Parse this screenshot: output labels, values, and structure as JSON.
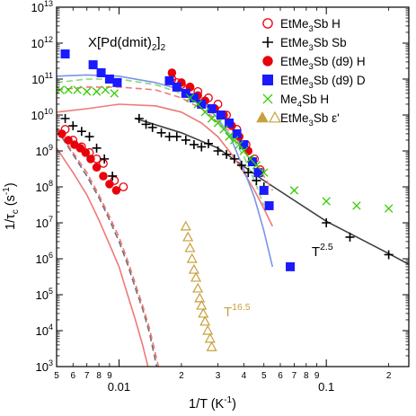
{
  "chart_data": {
    "type": "scatter",
    "title": "X[Pd(dmit)2]2",
    "xlabel": "1/T (K-1)",
    "ylabel": "1/τc (s-1)",
    "x_scale": "log",
    "y_scale": "log",
    "xlim": [
      0.005,
      0.25
    ],
    "ylim": [
      1000,
      10000000000000
    ],
    "grid": false,
    "legend_placement": "top-right",
    "x_decade_ticks": [
      {
        "value": 0.01,
        "label": "0.01"
      },
      {
        "value": 0.1,
        "label": "0.1"
      }
    ],
    "x_minor_ticks": [
      {
        "value": 0.005,
        "label": "5"
      },
      {
        "value": 0.006,
        "label": "6"
      },
      {
        "value": 0.007,
        "label": "7"
      },
      {
        "value": 0.008,
        "label": "8"
      },
      {
        "value": 0.009,
        "label": "9"
      },
      {
        "value": 0.02,
        "label": "2"
      },
      {
        "value": 0.03,
        "label": "3"
      },
      {
        "value": 0.04,
        "label": "4"
      },
      {
        "value": 0.05,
        "label": "5"
      },
      {
        "value": 0.06,
        "label": "6"
      },
      {
        "value": 0.07,
        "label": "7"
      },
      {
        "value": 0.08,
        "label": "8"
      },
      {
        "value": 0.09,
        "label": "9"
      },
      {
        "value": 0.2,
        "label": "2"
      }
    ],
    "y_ticks": [
      {
        "value": 1000,
        "base": "10",
        "exp": "3"
      },
      {
        "value": 10000,
        "base": "10",
        "exp": "4"
      },
      {
        "value": 100000,
        "base": "10",
        "exp": "5"
      },
      {
        "value": 1000000,
        "base": "10",
        "exp": "6"
      },
      {
        "value": 10000000,
        "base": "10",
        "exp": "7"
      },
      {
        "value": 100000000,
        "base": "10",
        "exp": "8"
      },
      {
        "value": 1000000000,
        "base": "10",
        "exp": "9"
      },
      {
        "value": 10000000000,
        "base": "10",
        "exp": "10"
      },
      {
        "value": 100000000000,
        "base": "10",
        "exp": "11"
      },
      {
        "value": 1000000000000,
        "base": "10",
        "exp": "12"
      },
      {
        "value": 10000000000000,
        "base": "10",
        "exp": "13"
      }
    ],
    "series": [
      {
        "name": "EtMe3Sb H",
        "marker": "open-circle",
        "color": "#e8000b",
        "points": [
          [
            0.0055,
            4000000000.0
          ],
          [
            0.006,
            2000000000.0
          ],
          [
            0.0066,
            1300000000.0
          ],
          [
            0.0072,
            900000000.0
          ],
          [
            0.0078,
            600000000.0
          ],
          [
            0.0084,
            450000000.0
          ],
          [
            0.0095,
            150000000.0
          ],
          [
            0.0105,
            100000000.0
          ],
          [
            0.018,
            100000000000.0
          ],
          [
            0.019,
            80000000000.0
          ],
          [
            0.02,
            70000000000.0
          ],
          [
            0.022,
            60000000000.0
          ],
          [
            0.024,
            45000000000.0
          ],
          [
            0.027,
            30000000000.0
          ],
          [
            0.03,
            20000000000.0
          ],
          [
            0.033,
            10000000000.0
          ],
          [
            0.037,
            4000000000.0
          ],
          [
            0.041,
            1500000000.0
          ],
          [
            0.045,
            600000000.0
          ],
          [
            0.048,
            300000000.0
          ]
        ]
      },
      {
        "name": "EtMe3Sb Sb",
        "marker": "plus",
        "color": "#000000",
        "points": [
          [
            0.0055,
            8000000000.0
          ],
          [
            0.006,
            5000000000.0
          ],
          [
            0.0066,
            3500000000.0
          ],
          [
            0.0072,
            2500000000.0
          ],
          [
            0.0078,
            1200000000.0
          ],
          [
            0.0085,
            600000000.0
          ],
          [
            0.0093,
            200000000.0
          ],
          [
            0.0125,
            8000000000.0
          ],
          [
            0.0135,
            5500000000.0
          ],
          [
            0.0145,
            4500000000.0
          ],
          [
            0.016,
            3200000000.0
          ],
          [
            0.0175,
            2500000000.0
          ],
          [
            0.019,
            2500000000.0
          ],
          [
            0.021,
            2000000000.0
          ],
          [
            0.023,
            1500000000.0
          ],
          [
            0.025,
            1300000000.0
          ],
          [
            0.027,
            1600000000.0
          ],
          [
            0.03,
            1000000000.0
          ],
          [
            0.033,
            800000000.0
          ],
          [
            0.036,
            600000000.0
          ],
          [
            0.039,
            400000000.0
          ],
          [
            0.042,
            250000000.0
          ],
          [
            0.046,
            150000000.0
          ],
          [
            0.05,
            100000000.0
          ],
          [
            0.1,
            10000000.0
          ],
          [
            0.13,
            4000000.0
          ],
          [
            0.2,
            1300000.0
          ]
        ]
      },
      {
        "name": "EtMe3Sb (d9) H",
        "marker": "filled-circle",
        "color": "#e8000b",
        "points": [
          [
            0.0053,
            3000000000.0
          ],
          [
            0.0057,
            2000000000.0
          ],
          [
            0.0061,
            1500000000.0
          ],
          [
            0.0065,
            1200000000.0
          ],
          [
            0.0069,
            900000000.0
          ],
          [
            0.0073,
            600000000.0
          ],
          [
            0.0078,
            350000000.0
          ],
          [
            0.0084,
            200000000.0
          ],
          [
            0.009,
            120000000.0
          ],
          [
            0.0097,
            80000000.0
          ],
          [
            0.018,
            150000000000.0
          ],
          [
            0.02,
            80000000000.0
          ],
          [
            0.022,
            60000000000.0
          ],
          [
            0.024,
            35000000000.0
          ],
          [
            0.026,
            25000000000.0
          ],
          [
            0.029,
            15000000000.0
          ],
          [
            0.032,
            10000000000.0
          ],
          [
            0.035,
            5000000000.0
          ],
          [
            0.038,
            2500000000.0
          ],
          [
            0.042,
            1000000000.0
          ]
        ]
      },
      {
        "name": "EtMe3Sb (d9) D",
        "marker": "filled-square",
        "color": "#1a1aff",
        "points": [
          [
            0.0055,
            500000000000.0
          ],
          [
            0.0075,
            250000000000.0
          ],
          [
            0.0082,
            150000000000.0
          ],
          [
            0.009,
            100000000000.0
          ],
          [
            0.0098,
            80000000000.0
          ],
          [
            0.0175,
            90000000000.0
          ],
          [
            0.019,
            60000000000.0
          ],
          [
            0.021,
            40000000000.0
          ],
          [
            0.023,
            30000000000.0
          ],
          [
            0.025,
            20000000000.0
          ],
          [
            0.028,
            15000000000.0
          ],
          [
            0.031,
            10000000000.0
          ],
          [
            0.034,
            6000000000.0
          ],
          [
            0.037,
            3000000000.0
          ],
          [
            0.04,
            1500000000.0
          ],
          [
            0.044,
            500000000.0
          ],
          [
            0.047,
            250000000.0
          ],
          [
            0.05,
            80000000.0
          ],
          [
            0.053,
            30000000.0
          ],
          [
            0.067,
            600000.0
          ]
        ]
      },
      {
        "name": "Me4Sb H",
        "marker": "x-cross",
        "color": "#33cc00",
        "points": [
          [
            0.0052,
            50000000000.0
          ],
          [
            0.0057,
            50000000000.0
          ],
          [
            0.0063,
            50000000000.0
          ],
          [
            0.007,
            45000000000.0
          ],
          [
            0.0078,
            45000000000.0
          ],
          [
            0.0086,
            50000000000.0
          ],
          [
            0.0095,
            40000000000.0
          ],
          [
            0.022,
            30000000000.0
          ],
          [
            0.024,
            20000000000.0
          ],
          [
            0.026,
            12000000000.0
          ],
          [
            0.028,
            8000000000.0
          ],
          [
            0.03,
            6000000000.0
          ],
          [
            0.032,
            4000000000.0
          ],
          [
            0.034,
            2500000000.0
          ],
          [
            0.036,
            2000000000.0
          ],
          [
            0.038,
            1500000000.0
          ],
          [
            0.04,
            1000000000.0
          ],
          [
            0.043,
            600000000.0
          ],
          [
            0.046,
            400000000.0
          ],
          [
            0.05,
            250000000.0
          ],
          [
            0.07,
            80000000.0
          ],
          [
            0.1,
            40000000.0
          ],
          [
            0.14,
            30000000.0
          ],
          [
            0.2,
            25000000.0
          ]
        ]
      },
      {
        "name": "EtMe3Sb ε'",
        "marker": "triangle",
        "color": "#c8a03c",
        "points": [
          [
            0.021,
            8000000.0
          ],
          [
            0.0215,
            4000000.0
          ],
          [
            0.022,
            2000000.0
          ],
          [
            0.0225,
            1000000.0
          ],
          [
            0.023,
            500000.0
          ],
          [
            0.0235,
            300000.0
          ],
          [
            0.024,
            150000.0
          ],
          [
            0.0245,
            80000.0
          ],
          [
            0.025,
            50000.0
          ],
          [
            0.0255,
            30000.0
          ],
          [
            0.026,
            18000.0
          ],
          [
            0.0268,
            10000.0
          ],
          [
            0.0275,
            6000.0
          ],
          [
            0.028,
            3500.0
          ]
        ]
      }
    ],
    "fit_lines": [
      {
        "color": "#404040",
        "dashed": false,
        "points": [
          [
            0.012,
            8000000000.0
          ],
          [
            0.02,
            3200000000.0
          ],
          [
            0.03,
            1200000000.0
          ],
          [
            0.05,
            150000000.0
          ],
          [
            0.1,
            11000000.0
          ],
          [
            0.2,
            1400000.0
          ],
          [
            0.25,
            700000.0
          ]
        ]
      },
      {
        "color": "#f07878",
        "dashed": false,
        "points": [
          [
            0.005,
            1200000000.0
          ],
          [
            0.006,
            250000000.0
          ],
          [
            0.007,
            60000000.0
          ],
          [
            0.008,
            12000000.0
          ],
          [
            0.009,
            2500000.0
          ],
          [
            0.01,
            600000.0
          ],
          [
            0.011,
            100000.0
          ],
          [
            0.012,
            20000.0
          ],
          [
            0.013,
            4000.0
          ],
          [
            0.0138,
            1000.0
          ]
        ]
      },
      {
        "color": "#707070",
        "dashed": true,
        "points": [
          [
            0.005,
            4000000000.0
          ],
          [
            0.006,
            800000000.0
          ],
          [
            0.007,
            200000000.0
          ],
          [
            0.008,
            50000000.0
          ],
          [
            0.009,
            12000000.0
          ],
          [
            0.01,
            3000000.0
          ],
          [
            0.011,
            700000.0
          ],
          [
            0.012,
            150000.0
          ],
          [
            0.013,
            40000.0
          ],
          [
            0.014,
            9000.0
          ],
          [
            0.0152,
            1000.0
          ]
        ]
      },
      {
        "color": "#f07878",
        "dashed": true,
        "points": [
          [
            0.005,
            4500000000.0
          ],
          [
            0.006,
            900000000.0
          ],
          [
            0.007,
            250000000.0
          ],
          [
            0.008,
            60000000.0
          ],
          [
            0.009,
            15000000.0
          ],
          [
            0.01,
            4000000.0
          ],
          [
            0.011,
            900000.0
          ],
          [
            0.012,
            200000.0
          ],
          [
            0.013,
            50000.0
          ],
          [
            0.014,
            12000.0
          ],
          [
            0.0155,
            1000.0
          ]
        ]
      },
      {
        "color": "#f07878",
        "dashed": false,
        "points": [
          [
            0.005,
            12000000000.0
          ],
          [
            0.007,
            15000000000.0
          ],
          [
            0.01,
            20000000000.0
          ],
          [
            0.015,
            18000000000.0
          ],
          [
            0.02,
            12000000000.0
          ],
          [
            0.025,
            6000000000.0
          ],
          [
            0.03,
            2500000000.0
          ],
          [
            0.035,
            800000000.0
          ],
          [
            0.04,
            250000000.0
          ],
          [
            0.045,
            80000000.0
          ],
          [
            0.05,
            25000000.0
          ],
          [
            0.055,
            8000000.0
          ]
        ]
      },
      {
        "color": "#f07878",
        "dashed": true,
        "points": [
          [
            0.005,
            50000000000.0
          ],
          [
            0.007,
            60000000000.0
          ],
          [
            0.01,
            60000000000.0
          ],
          [
            0.015,
            50000000000.0
          ],
          [
            0.02,
            30000000000.0
          ],
          [
            0.025,
            15000000000.0
          ],
          [
            0.03,
            7000000000.0
          ],
          [
            0.035,
            3000000000.0
          ],
          [
            0.04,
            1200000000.0
          ],
          [
            0.045,
            500000000.0
          ],
          [
            0.05,
            200000000.0
          ],
          [
            0.055,
            80000000.0
          ]
        ]
      },
      {
        "color": "#7a94e8",
        "dashed": false,
        "points": [
          [
            0.005,
            120000000000.0
          ],
          [
            0.007,
            130000000000.0
          ],
          [
            0.01,
            120000000000.0
          ],
          [
            0.015,
            80000000000.0
          ],
          [
            0.02,
            50000000000.0
          ],
          [
            0.025,
            25000000000.0
          ],
          [
            0.03,
            8000000000.0
          ],
          [
            0.035,
            2000000000.0
          ],
          [
            0.04,
            300000000.0
          ],
          [
            0.045,
            50000000.0
          ],
          [
            0.05,
            6000000.0
          ],
          [
            0.055,
            600000.0
          ]
        ]
      },
      {
        "color": "#8cd678",
        "dashed": true,
        "points": [
          [
            0.005,
            80000000000.0
          ],
          [
            0.007,
            100000000000.0
          ],
          [
            0.01,
            100000000000.0
          ],
          [
            0.015,
            70000000000.0
          ],
          [
            0.02,
            40000000000.0
          ],
          [
            0.025,
            20000000000.0
          ],
          [
            0.03,
            8000000000.0
          ],
          [
            0.035,
            2500000000.0
          ],
          [
            0.04,
            700000000.0
          ],
          [
            0.045,
            150000000.0
          ],
          [
            0.05,
            30000000.0
          ]
        ]
      }
    ],
    "annotations": [
      {
        "base": "T",
        "exp": "2.5",
        "at": [
          0.085,
          1200000.0
        ],
        "color": "#000000"
      },
      {
        "base": "T",
        "exp": "16.5",
        "at": [
          0.032,
          25000.0
        ],
        "color": "#c8a03c"
      }
    ]
  }
}
